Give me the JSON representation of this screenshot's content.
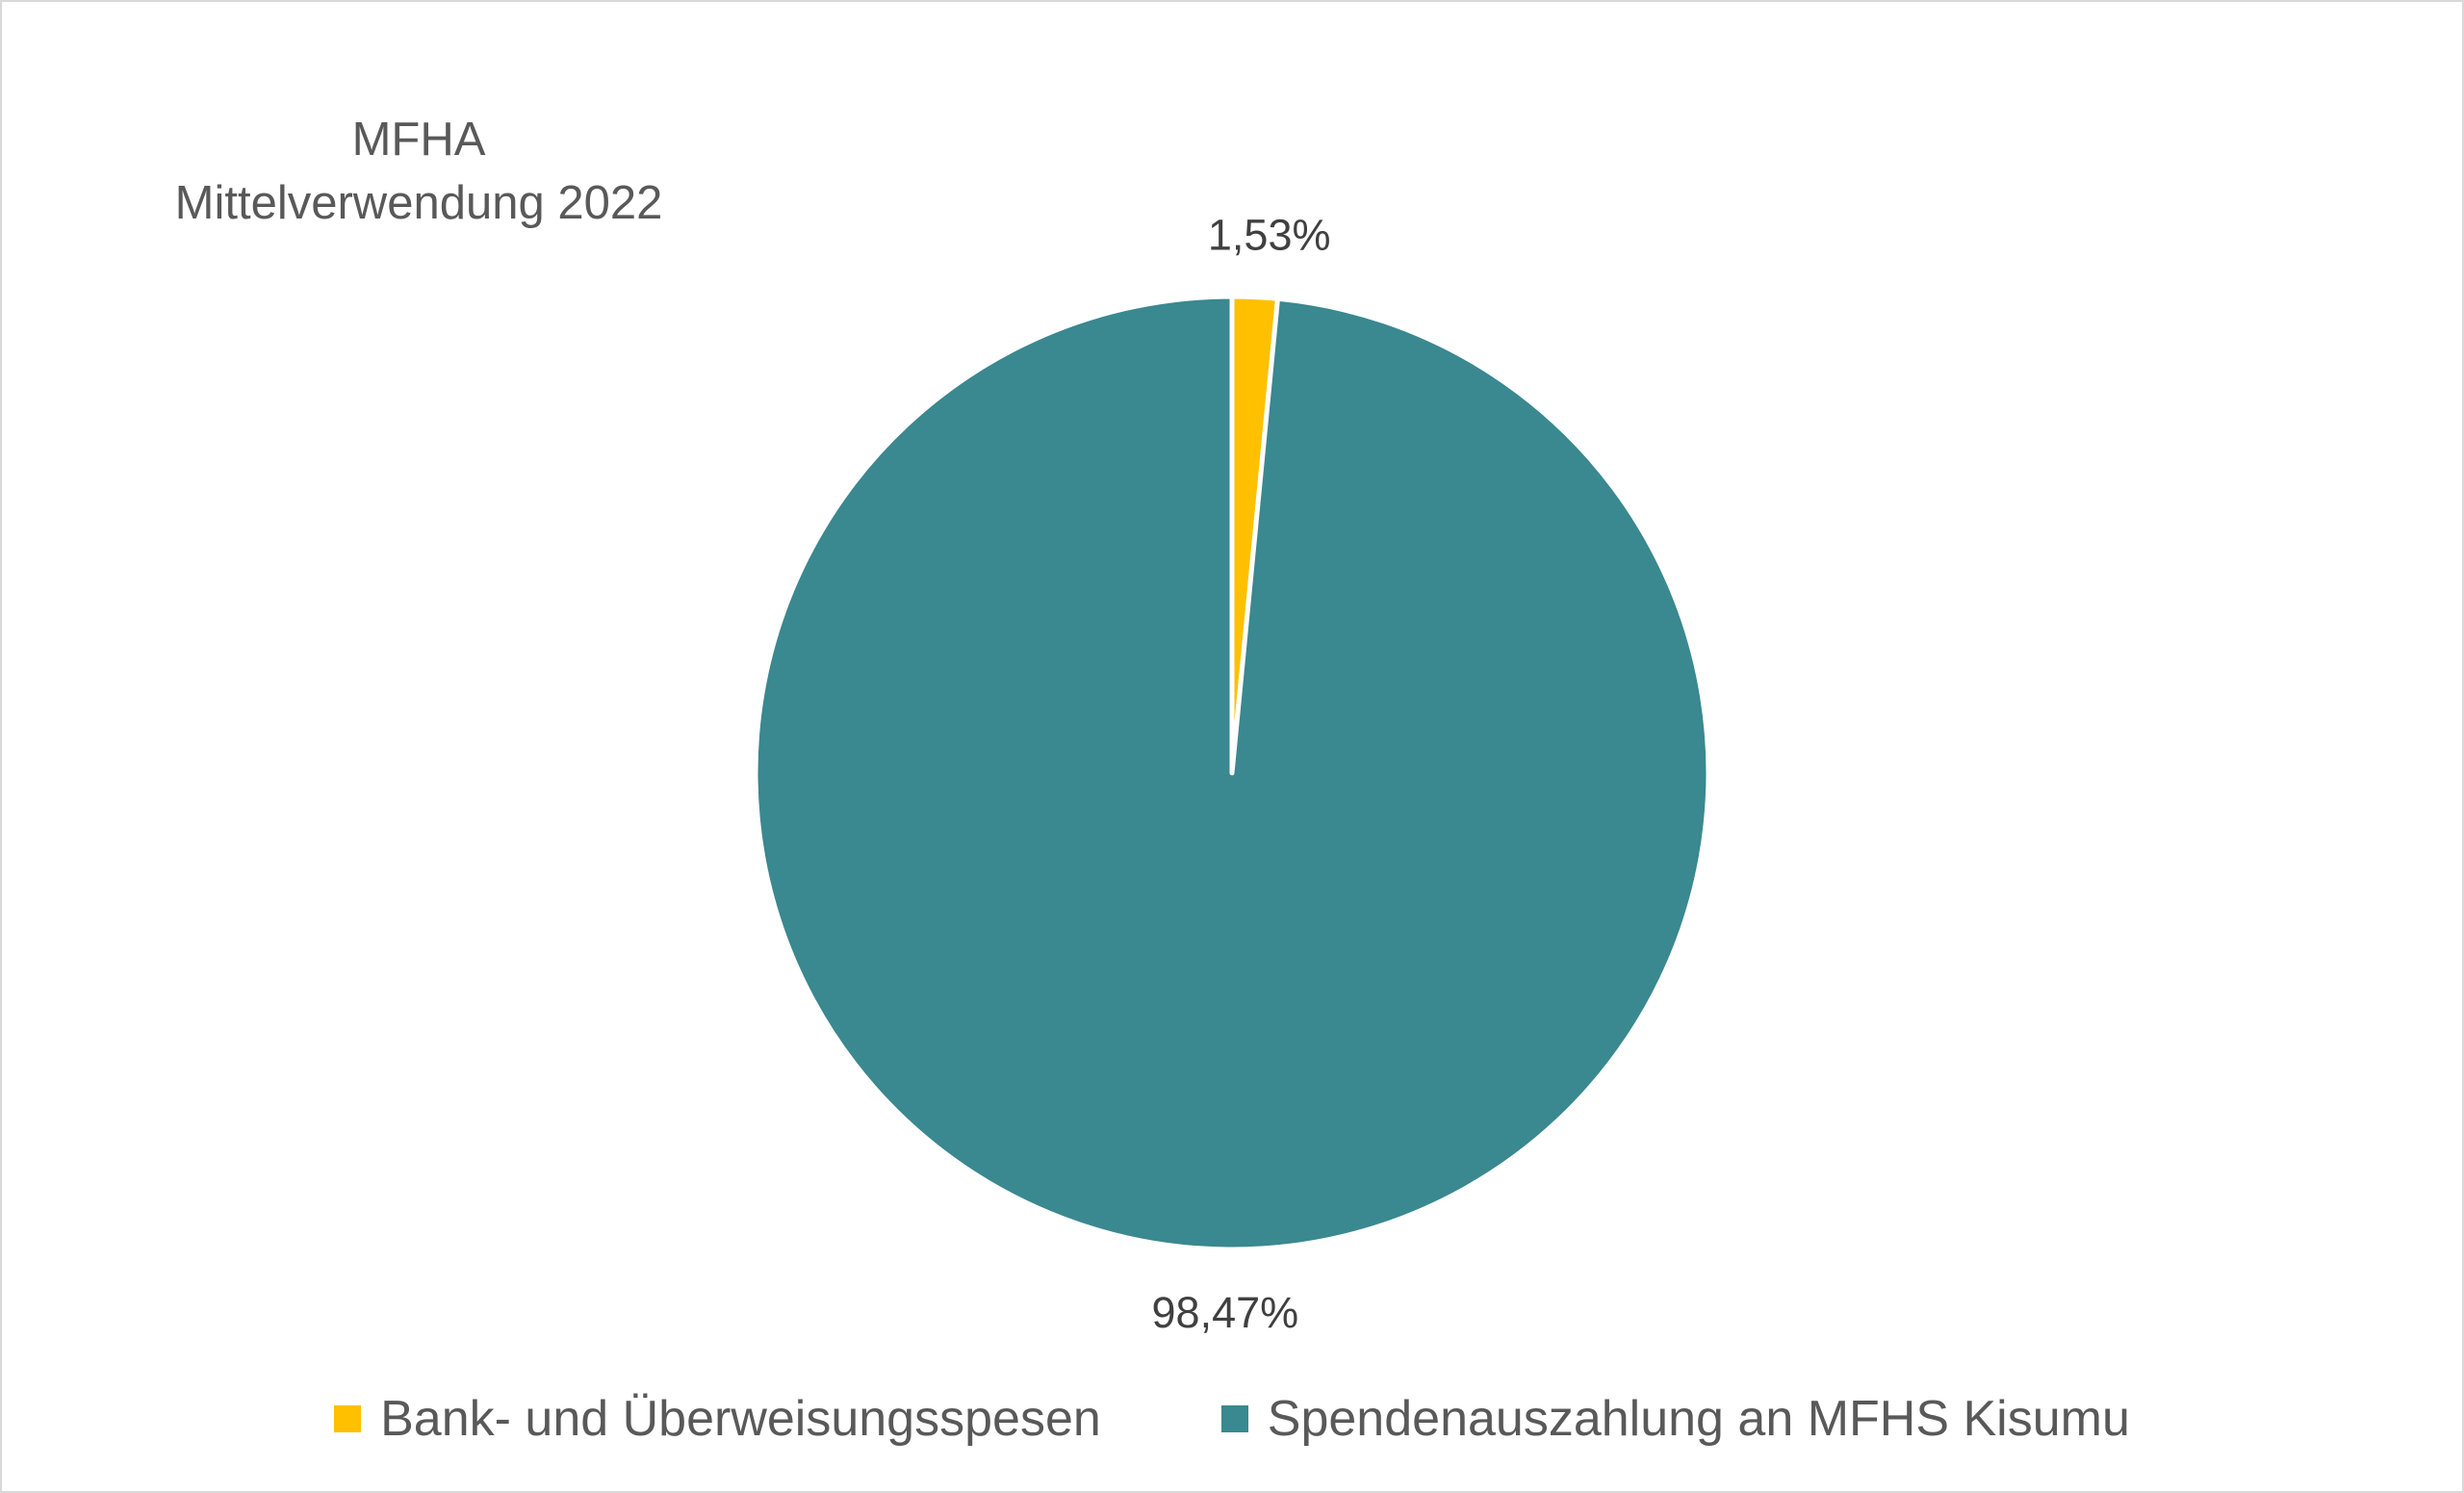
{
  "chart_data": {
    "type": "pie",
    "title_lines": [
      "MFHA",
      "Mittelverwendung 2022"
    ],
    "slices": [
      {
        "label": "Bank- und Überweisungsspesen",
        "value": 1.53,
        "display": "1,53%",
        "color": "#ffc000"
      },
      {
        "label": "Spendenauszahlung an MFHS Kisumu",
        "value": 98.47,
        "display": "98,47%",
        "color": "#3a8890"
      }
    ],
    "start_angle_deg": 0,
    "direction": "clockwise",
    "legend_position": "bottom"
  }
}
